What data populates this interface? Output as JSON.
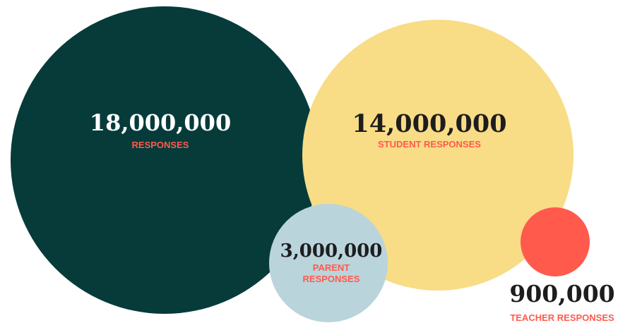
{
  "chart_data": {
    "type": "bubble",
    "bubbles": [
      {
        "value": 18000000,
        "value_label": "18,000,000",
        "caption": [
          "RESPONSES"
        ],
        "fill": "#063b3a",
        "number_color": "#ffffff",
        "caption_color": "#ff5a4c"
      },
      {
        "value": 14000000,
        "value_label": "14,000,000",
        "caption": [
          "STUDENT RESPONSES"
        ],
        "fill": "#f8dc86",
        "number_color": "#1d1d1d",
        "caption_color": "#ff5a4c"
      },
      {
        "value": 3000000,
        "value_label": "3,000,000",
        "caption": [
          "PARENT",
          "RESPONSES"
        ],
        "fill": "#bad4dc",
        "number_color": "#1d1d1d",
        "caption_color": "#ff5a4c"
      },
      {
        "value": 900000,
        "value_label": "900,000",
        "caption": [
          "TEACHER RESPONSES"
        ],
        "fill": "#ff5a4c",
        "number_color": "#1d1d1d",
        "caption_color": "#ff5a4c"
      }
    ]
  }
}
